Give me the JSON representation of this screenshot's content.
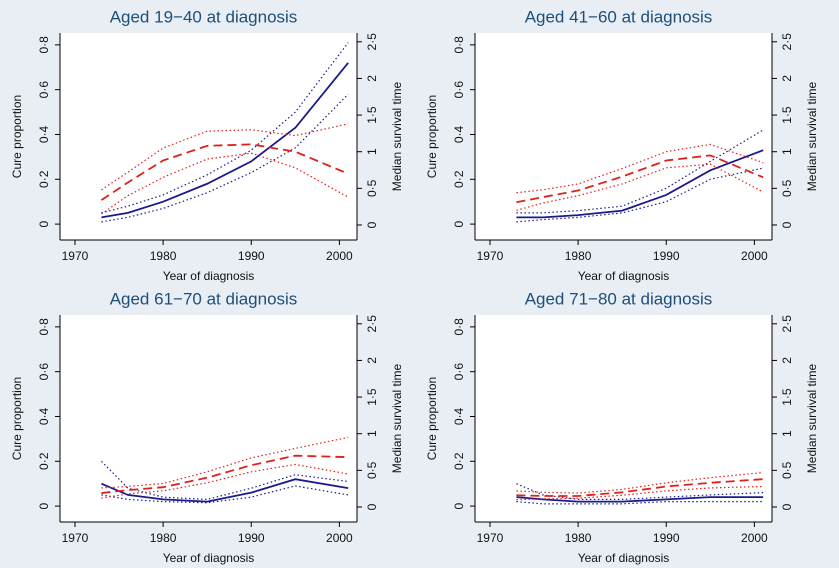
{
  "chart_data": [
    {
      "type": "line",
      "title": "Aged 19−40 at diagnosis",
      "xlabel": "Year of diagnosis",
      "ylabel": "Cure proportion",
      "y2label": "Median survival time",
      "x": [
        1973,
        1976,
        1980,
        1985,
        1990,
        1995,
        2001
      ],
      "xlim": [
        1968.3,
        2002.0
      ],
      "xticks": [
        1970,
        1980,
        1990,
        2000
      ],
      "ylim": [
        -0.071,
        0.853
      ],
      "yticks": [
        0,
        {
          "value": 0.2,
          "label": "0·2"
        },
        {
          "value": 0.4,
          "label": "0·4"
        },
        {
          "value": 0.6,
          "label": "0·6"
        },
        {
          "value": 0.8,
          "label": "0·8"
        }
      ],
      "y2lim": [
        -0.205,
        2.62
      ],
      "y2ticks": [
        0,
        {
          "value": 0.5,
          "label": "0·5"
        },
        1,
        {
          "value": 1.5,
          "label": "1·5"
        },
        2,
        {
          "value": 2.5,
          "label": "2·5"
        }
      ],
      "series": [
        {
          "color": "#1a1a8c",
          "style": "solid",
          "values": [
            0.03,
            0.05,
            0.1,
            0.18,
            0.28,
            0.43,
            0.72
          ]
        },
        {
          "color": "#1a1a8c",
          "style": "dotted",
          "values": [
            0.01,
            0.03,
            0.07,
            0.14,
            0.23,
            0.34,
            0.58
          ]
        },
        {
          "color": "#1a1a8c",
          "style": "dotted",
          "values": [
            0.05,
            0.08,
            0.13,
            0.22,
            0.33,
            0.5,
            0.81
          ]
        },
        {
          "color": "#e0201b",
          "style": "dashed",
          "axis": "y2",
          "values": [
            0.34,
            0.58,
            0.88,
            1.08,
            1.1,
            1.0,
            0.7
          ]
        },
        {
          "color": "#e0201b",
          "style": "dotted",
          "axis": "y2",
          "values": [
            0.15,
            0.4,
            0.65,
            0.9,
            0.98,
            0.78,
            0.38
          ]
        },
        {
          "color": "#e0201b",
          "style": "dotted",
          "axis": "y2",
          "values": [
            0.48,
            0.72,
            1.05,
            1.28,
            1.3,
            1.22,
            1.38
          ]
        }
      ]
    },
    {
      "type": "line",
      "title": "Aged 41−60 at diagnosis",
      "xlabel": "Year of diagnosis",
      "ylabel": "Cure proportion",
      "y2label": "Median survival time",
      "x": [
        1973,
        1976,
        1980,
        1985,
        1990,
        1995,
        2001
      ],
      "xlim": [
        1968.3,
        2002.0
      ],
      "xticks": [
        1970,
        1980,
        1990,
        2000
      ],
      "ylim": [
        -0.071,
        0.853
      ],
      "yticks": [
        0,
        {
          "value": 0.2,
          "label": "0·2"
        },
        {
          "value": 0.4,
          "label": "0·4"
        },
        {
          "value": 0.6,
          "label": "0·6"
        },
        {
          "value": 0.8,
          "label": "0·8"
        }
      ],
      "y2lim": [
        -0.205,
        2.62
      ],
      "y2ticks": [
        0,
        {
          "value": 0.5,
          "label": "0·5"
        },
        1,
        {
          "value": 1.5,
          "label": "1·5"
        },
        2,
        {
          "value": 2.5,
          "label": "2·5"
        }
      ],
      "series": [
        {
          "color": "#1a1a8c",
          "style": "solid",
          "values": [
            0.03,
            0.03,
            0.04,
            0.06,
            0.13,
            0.24,
            0.33
          ]
        },
        {
          "color": "#1a1a8c",
          "style": "dotted",
          "values": [
            0.01,
            0.02,
            0.03,
            0.05,
            0.1,
            0.2,
            0.25
          ]
        },
        {
          "color": "#1a1a8c",
          "style": "dotted",
          "values": [
            0.05,
            0.05,
            0.06,
            0.08,
            0.16,
            0.28,
            0.42
          ]
        },
        {
          "color": "#e0201b",
          "style": "dashed",
          "axis": "y2",
          "values": [
            0.31,
            0.38,
            0.47,
            0.66,
            0.88,
            0.95,
            0.65
          ]
        },
        {
          "color": "#e0201b",
          "style": "dotted",
          "axis": "y2",
          "values": [
            0.2,
            0.3,
            0.4,
            0.56,
            0.78,
            0.83,
            0.45
          ]
        },
        {
          "color": "#e0201b",
          "style": "dotted",
          "axis": "y2",
          "values": [
            0.44,
            0.48,
            0.56,
            0.77,
            1.0,
            1.1,
            0.85
          ]
        }
      ]
    },
    {
      "type": "line",
      "title": "Aged 61−70 at diagnosis",
      "xlabel": "Year of diagnosis",
      "ylabel": "Cure proportion",
      "y2label": "Median survival time",
      "x": [
        1973,
        1976,
        1980,
        1985,
        1990,
        1995,
        2001
      ],
      "xlim": [
        1968.3,
        2002.0
      ],
      "xticks": [
        1970,
        1980,
        1990,
        2000
      ],
      "ylim": [
        -0.071,
        0.853
      ],
      "yticks": [
        0,
        {
          "value": 0.2,
          "label": "0·2"
        },
        {
          "value": 0.4,
          "label": "0·4"
        },
        {
          "value": 0.6,
          "label": "0·6"
        },
        {
          "value": 0.8,
          "label": "0·8"
        }
      ],
      "y2lim": [
        -0.205,
        2.62
      ],
      "y2ticks": [
        0,
        {
          "value": 0.5,
          "label": "0·5"
        },
        1,
        {
          "value": 1.5,
          "label": "1·5"
        },
        2,
        {
          "value": 2.5,
          "label": "2·5"
        }
      ],
      "series": [
        {
          "color": "#1a1a8c",
          "style": "solid",
          "values": [
            0.1,
            0.05,
            0.03,
            0.02,
            0.06,
            0.12,
            0.08
          ]
        },
        {
          "color": "#1a1a8c",
          "style": "dotted",
          "values": [
            0.05,
            0.03,
            0.02,
            0.015,
            0.04,
            0.09,
            0.05
          ]
        },
        {
          "color": "#1a1a8c",
          "style": "dotted",
          "values": [
            0.2,
            0.08,
            0.04,
            0.03,
            0.08,
            0.14,
            0.11
          ]
        },
        {
          "color": "#e0201b",
          "style": "dashed",
          "axis": "y2",
          "values": [
            0.19,
            0.23,
            0.27,
            0.4,
            0.57,
            0.7,
            0.68
          ]
        },
        {
          "color": "#e0201b",
          "style": "dotted",
          "axis": "y2",
          "values": [
            0.12,
            0.18,
            0.22,
            0.33,
            0.48,
            0.58,
            0.45
          ]
        },
        {
          "color": "#e0201b",
          "style": "dotted",
          "axis": "y2",
          "values": [
            0.26,
            0.28,
            0.32,
            0.48,
            0.67,
            0.8,
            0.95
          ]
        }
      ]
    },
    {
      "type": "line",
      "title": "Aged 71−80 at diagnosis",
      "xlabel": "Year of diagnosis",
      "ylabel": "Cure proportion",
      "y2label": "Median survival time",
      "x": [
        1973,
        1976,
        1980,
        1985,
        1990,
        1995,
        2001
      ],
      "xlim": [
        1968.3,
        2002.0
      ],
      "xticks": [
        1970,
        1980,
        1990,
        2000
      ],
      "ylim": [
        -0.071,
        0.853
      ],
      "yticks": [
        0,
        {
          "value": 0.2,
          "label": "0·2"
        },
        {
          "value": 0.4,
          "label": "0·4"
        },
        {
          "value": 0.6,
          "label": "0·6"
        },
        {
          "value": 0.8,
          "label": "0·8"
        }
      ],
      "y2lim": [
        -0.205,
        2.62
      ],
      "y2ticks": [
        0,
        {
          "value": 0.5,
          "label": "0·5"
        },
        1,
        {
          "value": 1.5,
          "label": "1·5"
        },
        2,
        {
          "value": 2.5,
          "label": "2·5"
        }
      ],
      "series": [
        {
          "color": "#1a1a8c",
          "style": "solid",
          "values": [
            0.04,
            0.03,
            0.02,
            0.02,
            0.03,
            0.04,
            0.04
          ]
        },
        {
          "color": "#1a1a8c",
          "style": "dotted",
          "values": [
            0.02,
            0.01,
            0.01,
            0.01,
            0.02,
            0.02,
            0.02
          ]
        },
        {
          "color": "#1a1a8c",
          "style": "dotted",
          "values": [
            0.1,
            0.05,
            0.03,
            0.03,
            0.04,
            0.05,
            0.06
          ]
        },
        {
          "color": "#e0201b",
          "style": "dashed",
          "axis": "y2",
          "values": [
            0.16,
            0.15,
            0.15,
            0.2,
            0.28,
            0.33,
            0.38
          ]
        },
        {
          "color": "#e0201b",
          "style": "dotted",
          "axis": "y2",
          "values": [
            0.1,
            0.11,
            0.12,
            0.16,
            0.22,
            0.26,
            0.28
          ]
        },
        {
          "color": "#e0201b",
          "style": "dotted",
          "axis": "y2",
          "values": [
            0.22,
            0.2,
            0.19,
            0.24,
            0.33,
            0.4,
            0.47
          ]
        }
      ]
    }
  ]
}
